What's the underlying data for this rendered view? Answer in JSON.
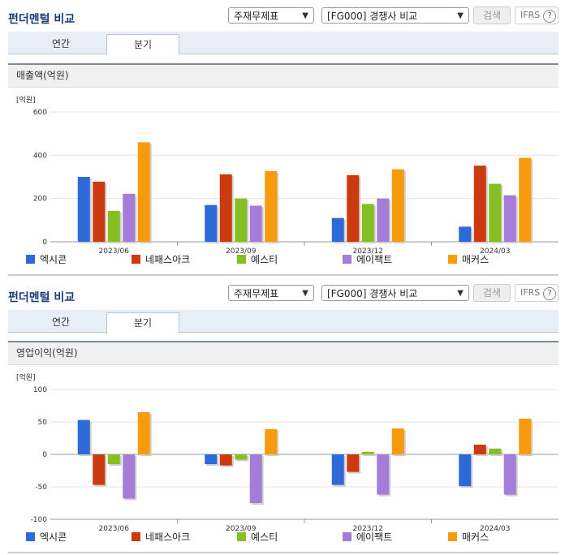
{
  "panel_title": "펀더멘털 비교",
  "account_select": "주재무제표",
  "compare_select": "[FG000] 경쟁사 비교",
  "search_label": "검색",
  "ifrs_label": "IFRS",
  "help_glyph": "?",
  "tabs": [
    {
      "label": "연간"
    },
    {
      "label": "분기"
    }
  ],
  "legend": [
    {
      "name": "엑시콘",
      "color": "#2d6ad8"
    },
    {
      "name": "네패스아크",
      "color": "#cc3b10"
    },
    {
      "name": "예스티",
      "color": "#86bf22"
    },
    {
      "name": "에이팩트",
      "color": "#a57cd8"
    },
    {
      "name": "매커스",
      "color": "#f79a0c"
    }
  ],
  "chart_data": [
    {
      "type": "bar",
      "title": "매출액(억원)",
      "ylabel": "[억원]",
      "categories": [
        "2023/06",
        "2023/09",
        "2023/12",
        "2024/03"
      ],
      "ylim": [
        0,
        600
      ],
      "yticks": [
        0,
        200,
        400,
        600
      ],
      "series": [
        {
          "name": "엑시콘",
          "values": [
            300,
            170,
            110,
            70
          ]
        },
        {
          "name": "네패스아크",
          "values": [
            278,
            312,
            308,
            352
          ]
        },
        {
          "name": "예스티",
          "values": [
            143,
            200,
            175,
            268
          ]
        },
        {
          "name": "에이팩트",
          "values": [
            222,
            167,
            200,
            215
          ]
        },
        {
          "name": "매커스",
          "values": [
            460,
            327,
            335,
            388
          ]
        }
      ]
    },
    {
      "type": "bar",
      "title": "영업이익(억원)",
      "ylabel": "[억원]",
      "categories": [
        "2023/06",
        "2023/09",
        "2023/12",
        "2024/03"
      ],
      "ylim": [
        -100,
        100
      ],
      "yticks": [
        -100,
        -50,
        0,
        50,
        100
      ],
      "series": [
        {
          "name": "엑시콘",
          "values": [
            53,
            -15,
            -47,
            -49
          ]
        },
        {
          "name": "네패스아크",
          "values": [
            -47,
            -17,
            -27,
            15
          ]
        },
        {
          "name": "예스티",
          "values": [
            -15,
            -8,
            4,
            9
          ]
        },
        {
          "name": "에이팩트",
          "values": [
            -68,
            -75,
            -62,
            -62
          ]
        },
        {
          "name": "매커스",
          "values": [
            65,
            39,
            40,
            55
          ]
        }
      ]
    }
  ]
}
